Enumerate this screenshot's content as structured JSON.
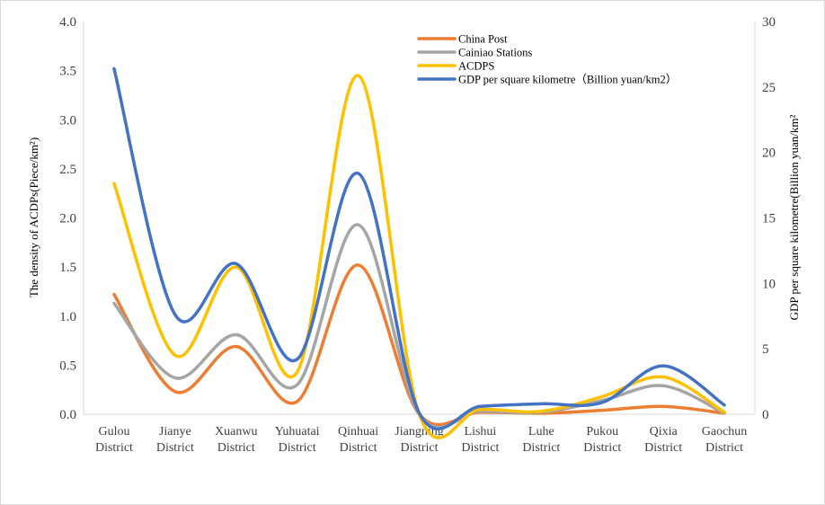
{
  "chart_data": {
    "type": "line",
    "smooth": true,
    "categories": [
      [
        "Gulou",
        "District"
      ],
      [
        "Jianye",
        "District"
      ],
      [
        "Xuanwu",
        "District"
      ],
      [
        "Yuhuatai",
        "District"
      ],
      [
        "Qinhuai",
        "District"
      ],
      [
        "Jiangning",
        "District"
      ],
      [
        "Lishui",
        "District"
      ],
      [
        "Luhe",
        "District"
      ],
      [
        "Pukou",
        "District"
      ],
      [
        "Qixia",
        "District"
      ],
      [
        "Gaochun",
        "District"
      ]
    ],
    "y_left": {
      "label": "The density of ACDPs(Piece/km²)",
      "min": 0,
      "max": 4.0,
      "step": 0.5,
      "ticks": [
        "0.0",
        "0.5",
        "1.0",
        "1.5",
        "2.0",
        "2.5",
        "3.0",
        "3.5",
        "4.0"
      ]
    },
    "y_right": {
      "label": "GDP per square kilometre(Billion  yuan/km²",
      "min": 0,
      "max": 30,
      "step": 5,
      "ticks": [
        "0",
        "5",
        "10",
        "15",
        "20",
        "25",
        "30"
      ]
    },
    "legend_position": "top-right",
    "grid": false,
    "series": [
      {
        "name": "China Post",
        "axis": "left",
        "color": "#ED7D31",
        "values": [
          1.22,
          0.23,
          0.69,
          0.13,
          1.52,
          0.0,
          0.02,
          0.01,
          0.04,
          0.08,
          0.01
        ]
      },
      {
        "name": "Cainiao Stations",
        "axis": "left",
        "color": "#A5A5A5",
        "values": [
          1.13,
          0.37,
          0.81,
          0.3,
          1.93,
          0.0,
          0.03,
          0.02,
          0.14,
          0.29,
          0.01
        ]
      },
      {
        "name": "ACDPS",
        "axis": "left",
        "color": "#FFC000",
        "values": [
          2.35,
          0.6,
          1.5,
          0.43,
          3.45,
          0.0,
          0.05,
          0.03,
          0.18,
          0.38,
          0.02
        ]
      },
      {
        "name": "GDP per square kilometre（Billion  yuan/km2）",
        "axis": "right",
        "color": "#4472C4",
        "values": [
          26.4,
          7.6,
          11.5,
          4.2,
          18.4,
          0.1,
          0.6,
          0.8,
          0.9,
          3.7,
          0.7
        ]
      }
    ]
  }
}
